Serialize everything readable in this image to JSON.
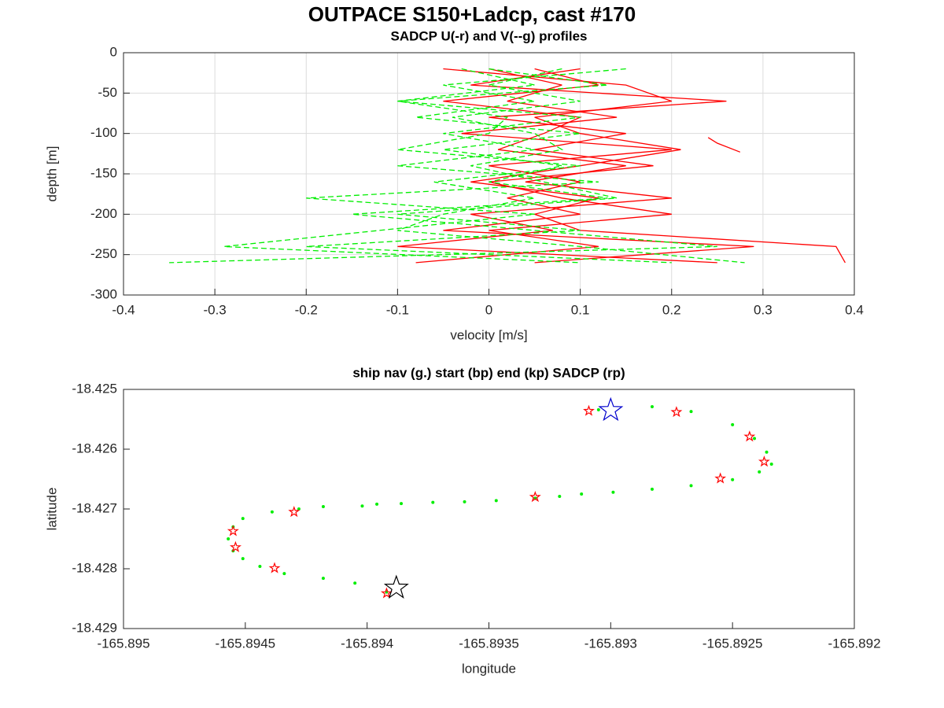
{
  "title": "OUTPACE S150+Ladcp, cast #170",
  "chart_data": [
    {
      "type": "line",
      "title": "SADCP U(-r) and V(--g) profiles",
      "xlabel": "velocity [m/s]",
      "ylabel": "depth [m]",
      "xlim": [
        -0.4,
        0.4
      ],
      "xticks": [
        -0.4,
        -0.3,
        -0.2,
        -0.1,
        0,
        0.1,
        0.2,
        0.3,
        0.4
      ],
      "ylim": [
        -300,
        0
      ],
      "yticks": [
        -300,
        -250,
        -200,
        -150,
        -100,
        -50,
        0
      ],
      "grid": true,
      "series": [
        {
          "color": "#ff0000",
          "style": "solid",
          "x": [
            -0.05,
            0.15,
            0.2,
            0.05,
            0.1,
            0.21,
            0.1,
            -0.02,
            0.12,
            0.05,
            0.1,
            0.38,
            0.39
          ],
          "values": [
            -20,
            -40,
            -60,
            -80,
            -100,
            -120,
            -140,
            -160,
            -180,
            -200,
            -220,
            -240,
            -260
          ]
        },
        {
          "color": "#ff0000",
          "style": "solid",
          "x": [
            0.1,
            -0.02,
            0.26,
            0.0,
            0.15,
            0.05,
            0.18,
            0.0,
            0.08,
            0.2,
            0.0,
            0.12,
            -0.08
          ],
          "values": [
            -20,
            -40,
            -60,
            -80,
            -100,
            -120,
            -140,
            -160,
            -180,
            -200,
            -220,
            -240,
            -260
          ]
        },
        {
          "color": "#ff0000",
          "style": "solid",
          "x": [
            0.0,
            0.08,
            0.02,
            0.14,
            -0.03,
            0.2,
            0.0,
            0.1,
            0.02,
            0.1,
            -0.05,
            0.29,
            0.05
          ],
          "values": [
            -20,
            -40,
            -60,
            -80,
            -100,
            -120,
            -140,
            -160,
            -180,
            -200,
            -220,
            -240,
            -260
          ]
        },
        {
          "color": "#ff0000",
          "style": "solid",
          "x": [
            0.05,
            0.12,
            -0.05,
            0.1,
            0.06,
            0.01,
            0.15,
            0.04,
            0.2,
            -0.02,
            0.07,
            -0.1,
            0.25
          ],
          "values": [
            -20,
            -40,
            -60,
            -80,
            -100,
            -120,
            -140,
            -160,
            -180,
            -200,
            -220,
            -240,
            -260
          ]
        },
        {
          "color": "#ff0000",
          "style": "solid",
          "x": [
            0.24,
            0.25,
            0.275
          ],
          "values": [
            -105,
            -112,
            -123
          ]
        },
        {
          "color": "#00ee00",
          "style": "dashed",
          "x": [
            0.0,
            0.13,
            -0.1,
            0.1,
            -0.05,
            0.05,
            -0.1,
            0.12,
            -0.2,
            0.05,
            -0.12,
            -0.29,
            0.1
          ],
          "values": [
            -20,
            -40,
            -60,
            -80,
            -100,
            -120,
            -140,
            -160,
            -180,
            -200,
            -220,
            -240,
            -260
          ]
        },
        {
          "color": "#00ee00",
          "style": "dashed",
          "x": [
            0.15,
            -0.05,
            0.05,
            -0.08,
            0.1,
            -0.05,
            0.08,
            0.0,
            0.13,
            -0.15,
            0.05,
            0.25,
            -0.35
          ],
          "values": [
            -20,
            -40,
            -60,
            -80,
            -100,
            -120,
            -140,
            -160,
            -180,
            -200,
            -220,
            -240,
            -260
          ]
        },
        {
          "color": "#00ee00",
          "style": "dashed",
          "x": [
            -0.03,
            0.05,
            -0.1,
            0.02,
            0.0,
            -0.1,
            0.1,
            -0.06,
            0.05,
            -0.05,
            -0.1,
            0.1,
            0.28
          ],
          "values": [
            -20,
            -40,
            -60,
            -80,
            -100,
            -120,
            -140,
            -160,
            -180,
            -200,
            -220,
            -240,
            -260
          ]
        },
        {
          "color": "#00ee00",
          "style": "dashed",
          "x": [
            0.08,
            0.0,
            0.1,
            -0.04,
            0.05,
            0.08,
            -0.02,
            0.06,
            0.14,
            -0.1,
            0.1,
            -0.2,
            0.2
          ],
          "values": [
            -20,
            -40,
            -60,
            -80,
            -100,
            -120,
            -140,
            -160,
            -180,
            -200,
            -220,
            -240,
            -260
          ]
        }
      ]
    },
    {
      "type": "scatter",
      "title": "ship nav (g.) start (bp) end (kp) SADCP (rp)",
      "xlabel": "longitude",
      "ylabel": "latitude",
      "xlim": [
        -165.895,
        -165.892
      ],
      "xticks": [
        -165.895,
        -165.8945,
        -165.894,
        -165.8935,
        -165.893,
        -165.8925,
        -165.892
      ],
      "ylim": [
        -18.429,
        -18.425
      ],
      "yticks": [
        -18.429,
        -18.428,
        -18.427,
        -18.426,
        -18.425
      ],
      "grid": false,
      "series": [
        {
          "color": "#00ee00",
          "marker": "dot",
          "x": [
            -165.89305,
            -165.89283,
            -165.89267,
            -165.8925,
            -165.89241,
            -165.89236,
            -165.89234,
            -165.89239,
            -165.8925,
            -165.89267,
            -165.89283,
            -165.89299,
            -165.89312,
            -165.89321,
            -165.89331,
            -165.89347,
            -165.8936,
            -165.89373,
            -165.89386,
            -165.89396,
            -165.89402,
            -165.89418,
            -165.89428,
            -165.89439,
            -165.89451,
            -165.89455,
            -165.89457,
            -165.89455,
            -165.89451,
            -165.89444,
            -165.89434,
            -165.89418,
            -165.89405,
            -165.89392
          ],
          "values": [
            -18.42534,
            -18.42529,
            -18.42537,
            -18.42559,
            -18.42582,
            -18.42605,
            -18.42625,
            -18.42638,
            -18.42651,
            -18.42661,
            -18.42667,
            -18.42672,
            -18.42675,
            -18.42679,
            -18.42682,
            -18.42686,
            -18.42688,
            -18.42689,
            -18.42691,
            -18.42692,
            -18.42695,
            -18.42696,
            -18.427,
            -18.42705,
            -18.42716,
            -18.4273,
            -18.4275,
            -18.4277,
            -18.42783,
            -18.42796,
            -18.42808,
            -18.42816,
            -18.42824,
            -18.42839
          ]
        },
        {
          "color": "#ff0000",
          "marker": "star",
          "x": [
            -165.89309,
            -165.89273,
            -165.89243,
            -165.89237,
            -165.89255,
            -165.89331,
            -165.8943,
            -165.89455,
            -165.89454,
            -165.89438,
            -165.89392
          ],
          "values": [
            -18.42536,
            -18.42538,
            -18.42579,
            -18.42621,
            -18.42649,
            -18.4268,
            -18.42705,
            -18.42737,
            -18.42764,
            -18.42799,
            -18.42841
          ]
        },
        {
          "color": "#0000cc",
          "marker": "bigstar",
          "x": [
            -165.893
          ],
          "values": [
            -18.42535
          ]
        },
        {
          "color": "#000000",
          "marker": "bigstar",
          "x": [
            -165.89388
          ],
          "values": [
            -18.42832
          ]
        }
      ]
    }
  ]
}
